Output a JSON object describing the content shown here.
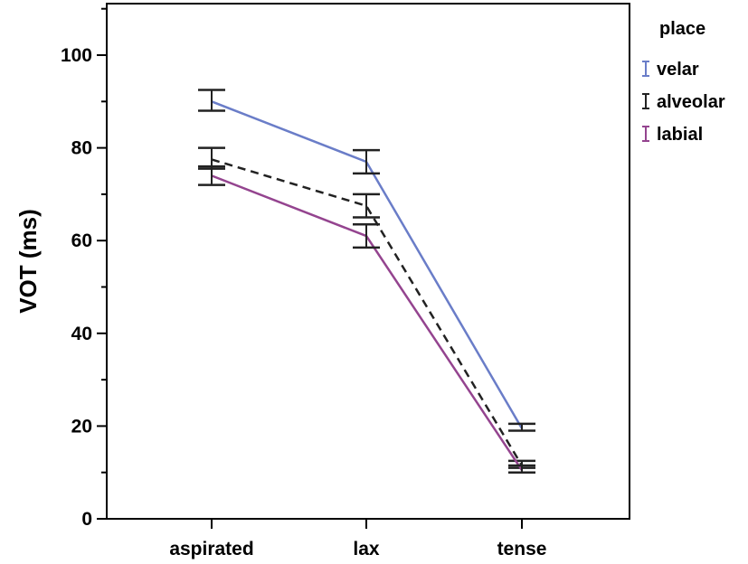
{
  "chart_data": {
    "type": "line",
    "ylabel": "VOT (ms)",
    "xlabel": "",
    "categories": [
      "aspirated",
      "lax",
      "tense"
    ],
    "ylim": [
      0,
      110
    ],
    "yticks": [
      0,
      20,
      40,
      60,
      80,
      100
    ],
    "grid": false,
    "error_bars": true,
    "legend": {
      "title": "place",
      "position": "right",
      "entries": [
        "velar",
        "alveolar",
        "labial"
      ]
    },
    "series": [
      {
        "name": "velar",
        "color": "#6a7dc8",
        "dash": "solid",
        "values": [
          90,
          77,
          19.5
        ],
        "err_low": [
          88,
          74.5,
          19
        ],
        "err_high": [
          92.5,
          79.5,
          20.5
        ]
      },
      {
        "name": "alveolar",
        "color": "#222222",
        "dash": "dashed",
        "values": [
          77.5,
          67.5,
          11.5
        ],
        "err_low": [
          75.5,
          65,
          11
        ],
        "err_high": [
          80,
          70,
          12.5
        ]
      },
      {
        "name": "labial",
        "color": "#94448f",
        "dash": "solid",
        "values": [
          74,
          61,
          10.5
        ],
        "err_low": [
          72,
          58.5,
          10
        ],
        "err_high": [
          76,
          63.5,
          11.5
        ]
      }
    ]
  }
}
